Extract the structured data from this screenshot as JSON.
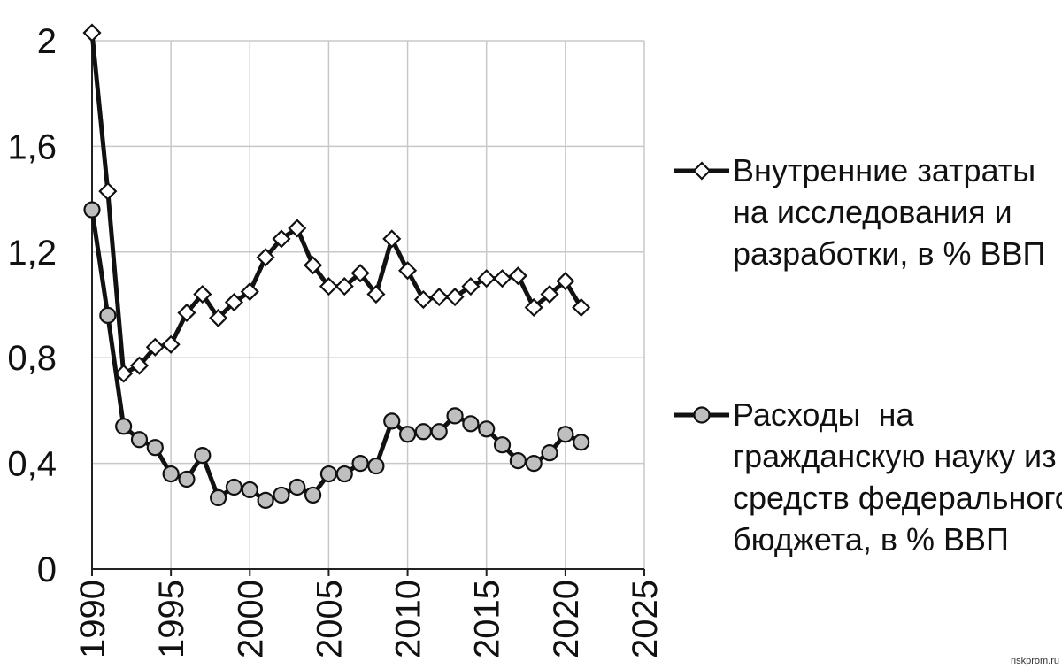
{
  "chart_data": {
    "type": "line",
    "x": [
      1990,
      1991,
      1992,
      1993,
      1994,
      1995,
      1996,
      1997,
      1998,
      1999,
      2000,
      2001,
      2002,
      2003,
      2004,
      2005,
      2006,
      2007,
      2008,
      2009,
      2010,
      2011,
      2012,
      2013,
      2014,
      2015,
      2016,
      2017,
      2018,
      2019,
      2020,
      2021
    ],
    "xlim": [
      1990,
      2025
    ],
    "ylim": [
      0,
      2
    ],
    "x_ticks": [
      "1990",
      "1995",
      "2000",
      "2005",
      "2010",
      "2015",
      "2020",
      "2025"
    ],
    "x_tick_values": [
      1990,
      1995,
      2000,
      2005,
      2010,
      2015,
      2020,
      2025
    ],
    "y_ticks": [
      "0",
      "0,4",
      "0,8",
      "1,2",
      "1,6",
      "2"
    ],
    "y_tick_values": [
      0,
      0.4,
      0.8,
      1.2,
      1.6,
      2.0
    ],
    "grid": true,
    "legend_position": "right",
    "series": [
      {
        "name_lines": [
          "Внутренние затраты",
          "на исследования и",
          "разработки, в % ВВП"
        ],
        "marker": "diamond",
        "marker_fill": "#ffffff",
        "line_color": "#111111",
        "values": [
          2.03,
          1.43,
          0.74,
          0.77,
          0.84,
          0.85,
          0.97,
          1.04,
          0.95,
          1.01,
          1.05,
          1.18,
          1.25,
          1.29,
          1.15,
          1.07,
          1.07,
          1.12,
          1.04,
          1.25,
          1.13,
          1.02,
          1.03,
          1.03,
          1.07,
          1.1,
          1.1,
          1.11,
          0.99,
          1.04,
          1.09,
          0.99
        ]
      },
      {
        "name_lines": [
          "Расходы  на",
          "гражданскую науку из",
          "средств федерального",
          "бюджета, в % ВВП"
        ],
        "marker": "circle",
        "marker_fill": "#bfbfbf",
        "line_color": "#111111",
        "values": [
          1.36,
          0.96,
          0.54,
          0.49,
          0.46,
          0.36,
          0.34,
          0.43,
          0.27,
          0.31,
          0.3,
          0.26,
          0.28,
          0.31,
          0.28,
          0.36,
          0.36,
          0.4,
          0.39,
          0.56,
          0.51,
          0.52,
          0.52,
          0.58,
          0.55,
          0.53,
          0.47,
          0.41,
          0.4,
          0.44,
          0.51,
          0.48
        ]
      }
    ]
  },
  "watermark": "riskprom.ru"
}
